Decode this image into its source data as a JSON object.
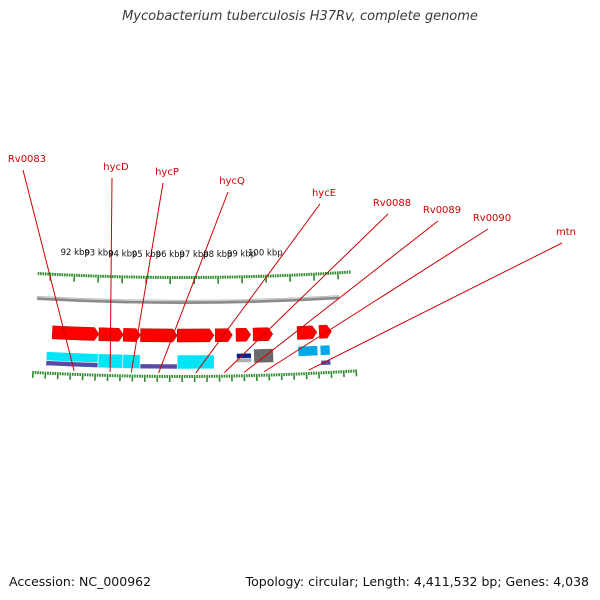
{
  "title": "Mycobacterium tuberculosis H37Rv, complete genome",
  "footer": {
    "accession": "Accession: NC_000962",
    "summary": "Topology: circular; Length: 4,411,532 bp; Genes: 4,038"
  },
  "colors": {
    "gene_label": "#d00000",
    "forward_cds": "#ff0000",
    "backbone": "#8a8a8a",
    "cyan_track": "#00e5f5",
    "blue_track": "#00a8e8",
    "purple_track": "#5a4aa8",
    "navy_track": "#00208a",
    "gray_track": "#6a6a6a",
    "tick": "#2e8b2e"
  },
  "genes": [
    {
      "label": "Rv0083",
      "start_kbp": 91.2,
      "end_kbp": 93.1
    },
    {
      "label": "hycD",
      "start_kbp": 93.1,
      "end_kbp": 94.1
    },
    {
      "label": "hycP",
      "start_kbp": 94.1,
      "end_kbp": 94.8
    },
    {
      "label": "hycQ",
      "start_kbp": 94.8,
      "end_kbp": 96.3
    },
    {
      "label": "hycE",
      "start_kbp": 96.3,
      "end_kbp": 97.8
    },
    {
      "label": "Rv0088",
      "start_kbp": 97.85,
      "end_kbp": 98.55
    },
    {
      "label": "Rv0089",
      "start_kbp": 98.7,
      "end_kbp": 99.3
    },
    {
      "label": "Rv0090",
      "start_kbp": 99.4,
      "end_kbp": 100.2
    },
    {
      "label": "mtn",
      "start_kbp": 101.2,
      "end_kbp": 102.0
    }
  ],
  "kbp_labels": [
    "92 kbp",
    "93 kbp",
    "94 kbp",
    "95 kbp",
    "96 kbp",
    "97 kbp",
    "98 kbp",
    "99 kbp",
    "100 kbp"
  ],
  "tracks": {
    "purple": [
      [
        91.0,
        93.1
      ],
      [
        94.8,
        96.3
      ],
      [
        102.1,
        102.5
      ]
    ],
    "cyan": [
      [
        91.0,
        93.1
      ],
      [
        93.1,
        94.1
      ],
      [
        94.1,
        94.8
      ],
      [
        96.3,
        97.8
      ]
    ],
    "navy_box": [
      [
        98.7,
        99.3
      ]
    ],
    "gray_box": [
      [
        99.4,
        100.2
      ]
    ],
    "blue_box": [
      [
        101.2,
        102.0
      ],
      [
        102.1,
        102.5
      ]
    ]
  }
}
